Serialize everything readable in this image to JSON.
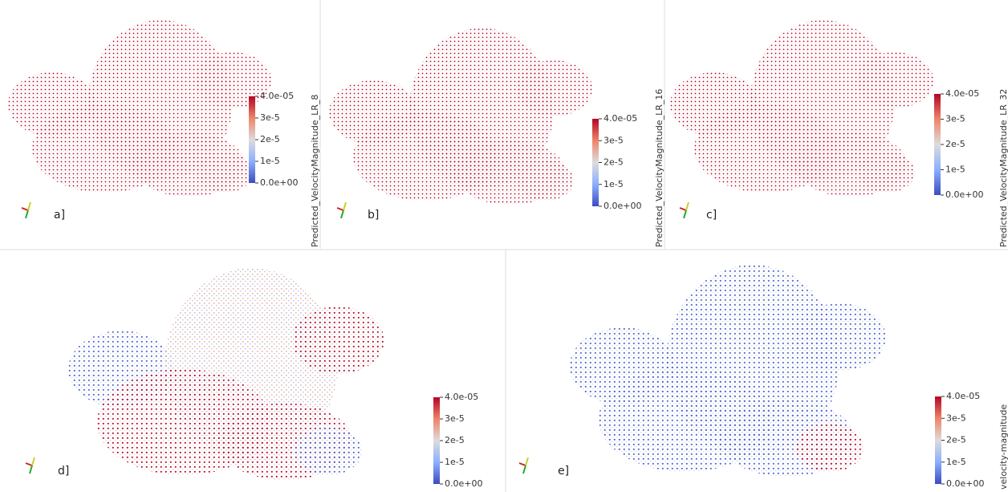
{
  "panels": [
    {
      "label": "a]",
      "colorbar": {
        "title": "Predicted_VelocityMagnitude_LR_8",
        "range": [
          0,
          4e-05
        ],
        "ticks": [
          {
            "value": 4e-05,
            "label": "4.0e-05"
          },
          {
            "value": 3e-05,
            "label": "3e-5"
          },
          {
            "value": 2e-05,
            "label": "2e-5"
          },
          {
            "value": 1e-05,
            "label": "1e-5"
          },
          {
            "value": 0,
            "label": "0.0e+00"
          }
        ]
      }
    },
    {
      "label": "b]",
      "colorbar": {
        "title": "Predicted_VelocityMagnitude_LR_16",
        "range": [
          0,
          4e-05
        ],
        "ticks": [
          {
            "value": 4e-05,
            "label": "4.0e-05"
          },
          {
            "value": 3e-05,
            "label": "3e-5"
          },
          {
            "value": 2e-05,
            "label": "2e-5"
          },
          {
            "value": 1e-05,
            "label": "1e-5"
          },
          {
            "value": 0,
            "label": "0.0e+00"
          }
        ]
      }
    },
    {
      "label": "c]",
      "colorbar": {
        "title": "Predicted_VelocityMagnitude_LR_32",
        "range": [
          0,
          4e-05
        ],
        "ticks": [
          {
            "value": 4e-05,
            "label": "4.0e-05"
          },
          {
            "value": 3e-05,
            "label": "3e-5"
          },
          {
            "value": 2e-05,
            "label": "2e-5"
          },
          {
            "value": 1e-05,
            "label": "1e-5"
          },
          {
            "value": 0,
            "label": "0.0e+00"
          }
        ]
      }
    },
    {
      "label": "d]",
      "colorbar": {
        "range": [
          0,
          4e-05
        ],
        "ticks": [
          {
            "value": 4e-05,
            "label": "4.0e-05"
          },
          {
            "value": 3e-05,
            "label": "3e-5"
          },
          {
            "value": 2e-05,
            "label": "2e-5"
          },
          {
            "value": 1e-05,
            "label": "1e-5"
          },
          {
            "value": 0,
            "label": "0.0e+00"
          }
        ]
      }
    },
    {
      "label": "e]",
      "colorbar": {
        "title": "velocity-magnitude",
        "range": [
          0,
          4e-05
        ],
        "ticks": [
          {
            "value": 4e-05,
            "label": "4.0e-05"
          },
          {
            "value": 3e-05,
            "label": "3e-5"
          },
          {
            "value": 2e-05,
            "label": "2e-5"
          },
          {
            "value": 1e-05,
            "label": "1e-5"
          },
          {
            "value": 0,
            "label": "0.0e+00"
          }
        ]
      }
    }
  ]
}
